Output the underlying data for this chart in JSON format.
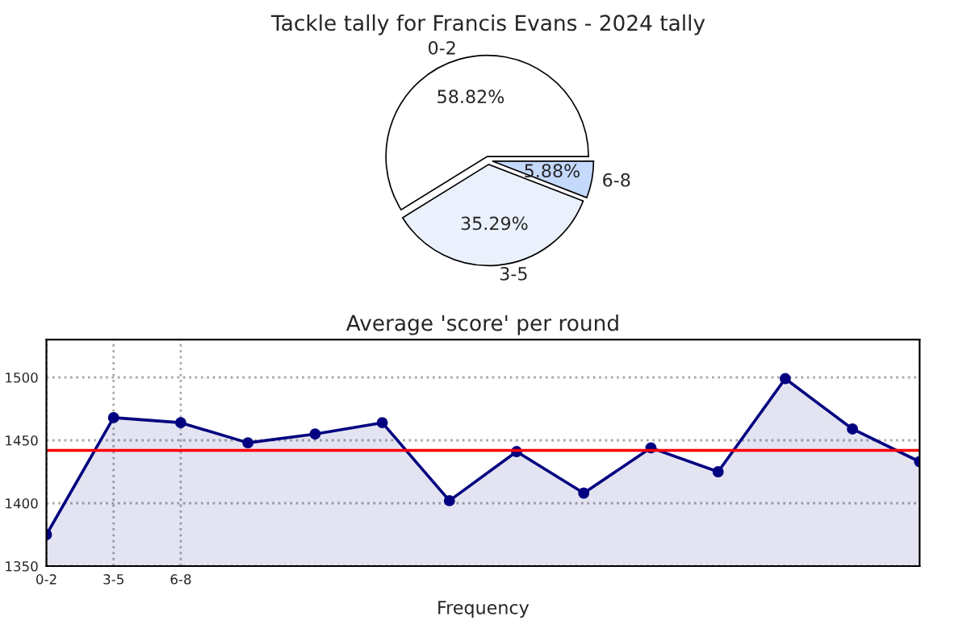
{
  "chart_data": [
    {
      "type": "pie",
      "title": "Tackle tally for Francis Evans - 2024 tally",
      "categories": [
        "0-2",
        "3-5",
        "6-8"
      ],
      "values": [
        58.82,
        35.29,
        5.88
      ],
      "colors": [
        "#ffffff",
        "#eaf1fd",
        "#c5d9fd"
      ],
      "value_labels": [
        "58.82%",
        "35.29%",
        "5.88%"
      ]
    },
    {
      "type": "area",
      "title": "Average 'score' per round",
      "xlabel": "Frequency",
      "categories": [
        "0-2",
        "3-5",
        "6-8",
        null,
        null,
        null,
        null,
        null,
        null,
        null,
        null,
        null,
        null,
        null
      ],
      "series": [
        {
          "color": "#000080",
          "values": [
            1375,
            1468,
            1464,
            1448,
            1455,
            1464,
            1402,
            1441,
            1408,
            1444,
            1425,
            1499,
            1459,
            1433
          ]
        }
      ],
      "ylim": [
        1350,
        1530
      ],
      "yticks": [
        1350,
        1400,
        1450,
        1500
      ],
      "grid": true,
      "marker": "circle",
      "line_style": "solid",
      "ref_lines": [
        {
          "axis": "y",
          "value": 1442,
          "color": "#ff0000"
        }
      ]
    }
  ]
}
